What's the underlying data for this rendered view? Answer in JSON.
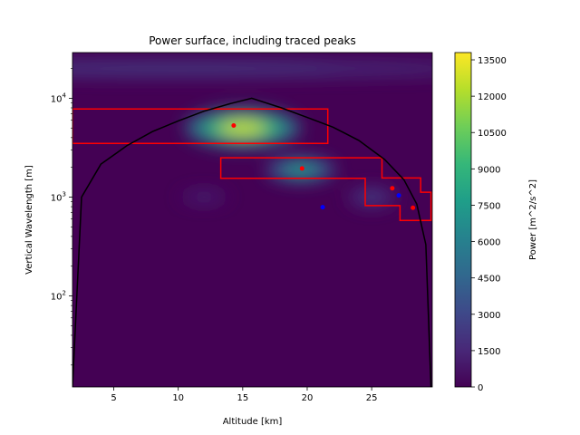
{
  "chart_data": {
    "type": "heatmap",
    "title": "Power surface, including traced peaks",
    "xlabel": "Altitude [km]",
    "ylabel": "Vertical Wavelength [m]",
    "colorbar_label": "Power [m^2/s^2]",
    "colormap": "viridis",
    "colormap_stops": [
      "#440154",
      "#482878",
      "#3e4989",
      "#31688e",
      "#26828e",
      "#1f9e89",
      "#35b779",
      "#6ece58",
      "#b5de2b",
      "#fde725"
    ],
    "xlim": [
      1.8,
      29.7
    ],
    "ylim": [
      12,
      29000
    ],
    "y_scale": "log",
    "x_ticks": [
      5,
      10,
      15,
      20,
      25
    ],
    "x_tick_labels": [
      "5",
      "10",
      "15",
      "20",
      "25"
    ],
    "y_ticks": [
      100,
      1000,
      10000
    ],
    "y_tick_labels": [
      "10^2",
      "10^3",
      "10^4"
    ],
    "colorbar_ticks": [
      0,
      1500,
      3000,
      4500,
      6000,
      7500,
      9000,
      10500,
      12000,
      13500
    ],
    "colorbar_tick_labels": [
      "0",
      "1500",
      "3000",
      "4500",
      "6000",
      "7500",
      "9000",
      "10500",
      "12000",
      "13500"
    ],
    "colorbar_range": [
      0,
      13800
    ],
    "power_features": [
      {
        "center_altitude": 15.0,
        "center_wavelength": 5000,
        "power": 13000,
        "altitude_extent": 9.0,
        "wavelength_factor": 1.6
      },
      {
        "center_altitude": 19.5,
        "center_wavelength": 1900,
        "power": 8000,
        "altitude_extent": 5.5,
        "wavelength_factor": 1.35
      },
      {
        "center_altitude": 10.0,
        "center_wavelength": 20000,
        "power": 2500,
        "altitude_extent": 60,
        "wavelength_factor": 1.25
      },
      {
        "center_altitude": 12.0,
        "center_wavelength": 1000,
        "power": 1500,
        "altitude_extent": 4.0,
        "wavelength_factor": 1.2
      },
      {
        "center_altitude": 25.0,
        "center_wavelength": 1000,
        "power": 2500,
        "altitude_extent": 4.0,
        "wavelength_factor": 1.3
      }
    ],
    "boundary_curve": {
      "color": "#000000",
      "x": [
        1.8,
        2.5,
        4,
        6,
        8,
        10,
        12,
        14,
        15.7,
        18,
        20,
        22,
        24,
        26,
        27.5,
        28.5,
        29.2,
        29.6
      ],
      "y": [
        12,
        1000,
        2150,
        3300,
        4600,
        5900,
        7400,
        8800,
        10000,
        8000,
        6400,
        5100,
        3750,
        2400,
        1500,
        850,
        330,
        12
      ]
    },
    "peak_regions": [
      {
        "color": "#ff0000",
        "points": [
          [
            1.8,
            3500
          ],
          [
            21.6,
            3500
          ],
          [
            21.6,
            7800
          ],
          [
            1.8,
            7800
          ]
        ]
      },
      {
        "color": "#ff0000",
        "points": [
          [
            13.3,
            1550
          ],
          [
            24.5,
            1550
          ],
          [
            24.5,
            820
          ],
          [
            27.2,
            820
          ],
          [
            27.2,
            580
          ],
          [
            29.6,
            580
          ],
          [
            29.6,
            1120
          ],
          [
            28.8,
            1120
          ],
          [
            28.8,
            1560
          ],
          [
            25.8,
            1560
          ],
          [
            25.8,
            2500
          ],
          [
            13.3,
            2500
          ]
        ]
      }
    ],
    "points": [
      {
        "x": 14.3,
        "y": 5300,
        "color": "#ff0000"
      },
      {
        "x": 19.6,
        "y": 1950,
        "color": "#ff0000"
      },
      {
        "x": 26.6,
        "y": 1230,
        "color": "#ff0000"
      },
      {
        "x": 28.2,
        "y": 780,
        "color": "#ff0000"
      },
      {
        "x": 21.2,
        "y": 790,
        "color": "#0000ff"
      },
      {
        "x": 27.1,
        "y": 1040,
        "color": "#0000ff"
      }
    ]
  }
}
